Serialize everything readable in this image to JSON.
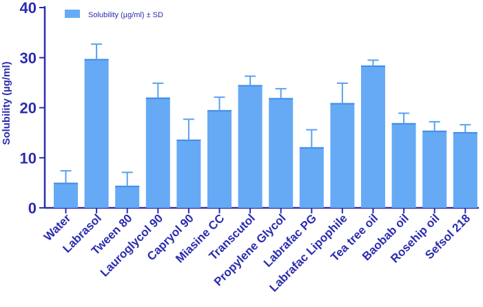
{
  "chart_data": {
    "type": "bar",
    "ylabel": "Solubility (µg/ml)",
    "xlabel": "",
    "ylim": [
      0,
      40
    ],
    "yticks": [
      0,
      10,
      20,
      30,
      40
    ],
    "grid": false,
    "legend_position": "top-left",
    "categories": [
      "Water",
      "Labrasol",
      "Tween 80",
      "Lauroglycol 90",
      "Capryol 90",
      "Miasine CC",
      "Transcutol",
      "Propylene Glycol",
      "Labrafac PG",
      "Labrafac Lipophile",
      "Tea tree oil",
      "Baobab oil",
      "Rosehip oil",
      "Sefsol 218"
    ],
    "series": [
      {
        "name": "Solubility (µg/ml) ± SD",
        "color": "#66aaf5",
        "values": [
          4.9,
          29.6,
          4.3,
          21.9,
          13.5,
          19.4,
          24.4,
          21.8,
          12.0,
          20.8,
          28.3,
          16.8,
          15.3,
          15.0
        ],
        "error": [
          2.5,
          3.1,
          2.8,
          3.0,
          4.2,
          2.7,
          1.9,
          2.0,
          3.6,
          4.1,
          1.2,
          2.1,
          1.9,
          1.6
        ]
      }
    ]
  }
}
